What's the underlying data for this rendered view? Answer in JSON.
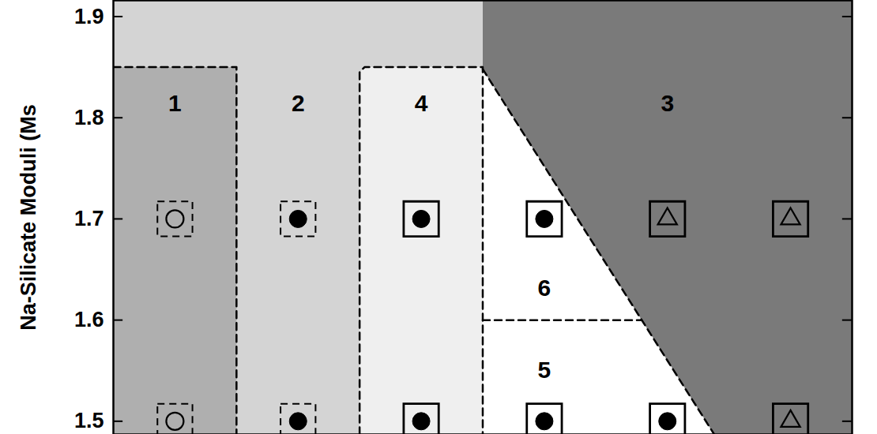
{
  "chart_data": {
    "type": "scatter",
    "y_label": "Na-Silicate Moduli (Ms",
    "xlim": [
      0.5,
      6.5
    ],
    "ylim": [
      1.487,
      1.916
    ],
    "yticks": [
      1.5,
      1.6,
      1.7,
      1.8,
      1.9
    ],
    "grid": false,
    "tick_labels": "y",
    "regions": [
      {
        "label": "2",
        "color": "#d4d4d4",
        "label_at": [
          2,
          1.814
        ],
        "points": [
          [
            0.5,
            1.487
          ],
          [
            0.5,
            1.916
          ],
          [
            3.5,
            1.916
          ],
          [
            3.5,
            1.487
          ]
        ]
      },
      {
        "label": "1",
        "color": "#afafaf",
        "label_at": [
          1,
          1.814
        ],
        "points": [
          [
            0.5,
            1.487
          ],
          [
            0.5,
            1.85
          ],
          [
            1.5,
            1.85
          ],
          [
            1.5,
            1.487
          ]
        ]
      },
      {
        "label": "4",
        "color": "#efefef",
        "label_at": [
          3,
          1.814
        ],
        "points": [
          [
            2.5,
            1.487
          ],
          [
            2.5,
            1.845
          ],
          [
            2.54,
            1.85
          ],
          [
            3.5,
            1.85
          ],
          [
            3.5,
            1.487
          ]
        ]
      },
      {
        "label": "6",
        "color": "#ffffff",
        "label_at": [
          4,
          1.631
        ],
        "points": [
          [
            3.5,
            1.6
          ],
          [
            3.5,
            1.848
          ],
          [
            4.79,
            1.6
          ]
        ]
      },
      {
        "label": "5",
        "color": "#ffffff",
        "label_at": [
          4,
          1.55
        ],
        "points": [
          [
            3.5,
            1.487
          ],
          [
            3.5,
            1.6
          ],
          [
            4.79,
            1.6
          ],
          [
            5.38,
            1.487
          ]
        ]
      },
      {
        "label": "3",
        "color": "#7a7a7a",
        "label_at": [
          5,
          1.814
        ],
        "points": [
          [
            3.5,
            1.916
          ],
          [
            6.5,
            1.916
          ],
          [
            6.5,
            1.487
          ],
          [
            5.38,
            1.487
          ],
          [
            3.5,
            1.848
          ]
        ]
      }
    ],
    "boundaries": [
      {
        "line_style": "dashed",
        "points": [
          [
            0.5,
            1.85
          ],
          [
            1.5,
            1.85
          ],
          [
            1.5,
            1.487
          ]
        ]
      },
      {
        "line_style": "dashed",
        "points": [
          [
            2.5,
            1.487
          ],
          [
            2.5,
            1.845
          ],
          [
            2.54,
            1.85
          ],
          [
            3.5,
            1.85
          ],
          [
            3.5,
            1.487
          ]
        ]
      },
      {
        "line_style": "dashed",
        "points": [
          [
            3.5,
            1.848
          ],
          [
            5.38,
            1.487
          ]
        ]
      },
      {
        "line_style": "dashed",
        "points": [
          [
            3.5,
            1.6
          ],
          [
            4.79,
            1.6
          ]
        ]
      }
    ],
    "series": [
      {
        "marker": "circle-open",
        "line_style": "dashed",
        "color": "#000000",
        "x": [
          1,
          1
        ],
        "values": [
          1.7,
          1.5
        ]
      },
      {
        "marker": "circle",
        "line_style": "dashed",
        "color": "#000000",
        "x": [
          2,
          2
        ],
        "values": [
          1.7,
          1.5
        ]
      },
      {
        "marker": "circle",
        "line_style": "solid",
        "color": "#000000",
        "x": [
          3,
          4,
          3,
          4,
          5
        ],
        "values": [
          1.7,
          1.7,
          1.5,
          1.5,
          1.5
        ]
      },
      {
        "marker": "triangle-open",
        "line_style": "solid",
        "color": "#000000",
        "x": [
          5,
          6,
          6
        ],
        "values": [
          1.7,
          1.7,
          1.5
        ]
      }
    ]
  }
}
